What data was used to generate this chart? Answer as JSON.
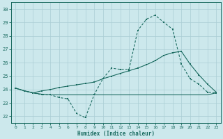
{
  "xlabel": "Humidex (Indice chaleur)",
  "bg_color": "#cce8ec",
  "grid_color": "#aacdd4",
  "line_color": "#1a6b60",
  "xlim": [
    -0.5,
    23.5
  ],
  "ylim": [
    21.5,
    30.5
  ],
  "yticks": [
    22,
    23,
    24,
    25,
    26,
    27,
    28,
    29,
    30
  ],
  "xticks": [
    0,
    1,
    2,
    3,
    4,
    5,
    6,
    7,
    8,
    9,
    10,
    11,
    12,
    13,
    14,
    15,
    16,
    17,
    18,
    19,
    20,
    21,
    22,
    23
  ],
  "line1_x": [
    0,
    1,
    2,
    3,
    4,
    5,
    6,
    7,
    8,
    9,
    10,
    11,
    12,
    13,
    14,
    15,
    16,
    17,
    18,
    19,
    20,
    21,
    22,
    23
  ],
  "line1_y": [
    24.1,
    23.9,
    23.75,
    23.6,
    23.6,
    23.4,
    23.3,
    22.2,
    21.9,
    23.6,
    24.8,
    25.6,
    25.5,
    25.5,
    28.4,
    29.25,
    29.55,
    29.0,
    28.5,
    25.9,
    24.8,
    24.4,
    23.8,
    23.75
  ],
  "line2_x": [
    0,
    1,
    2,
    3,
    4,
    5,
    6,
    7,
    8,
    9,
    10,
    11,
    12,
    13,
    14,
    15,
    16,
    17,
    18,
    19,
    20,
    21,
    22,
    23
  ],
  "line2_y": [
    24.1,
    23.9,
    23.75,
    23.9,
    24.0,
    24.15,
    24.25,
    24.35,
    24.45,
    24.55,
    24.8,
    25.0,
    25.2,
    25.4,
    25.6,
    25.85,
    26.15,
    26.55,
    26.75,
    26.85,
    25.9,
    25.1,
    24.4,
    23.8
  ],
  "line3_x": [
    0,
    1,
    2,
    3,
    4,
    5,
    6,
    7,
    8,
    9,
    10,
    11,
    12,
    13,
    14,
    15,
    16,
    17,
    18,
    19,
    20,
    21,
    22,
    23
  ],
  "line3_y": [
    24.1,
    23.9,
    23.75,
    23.65,
    23.6,
    23.6,
    23.6,
    23.6,
    23.6,
    23.6,
    23.6,
    23.6,
    23.6,
    23.6,
    23.6,
    23.6,
    23.6,
    23.6,
    23.6,
    23.6,
    23.6,
    23.6,
    23.6,
    23.75
  ]
}
